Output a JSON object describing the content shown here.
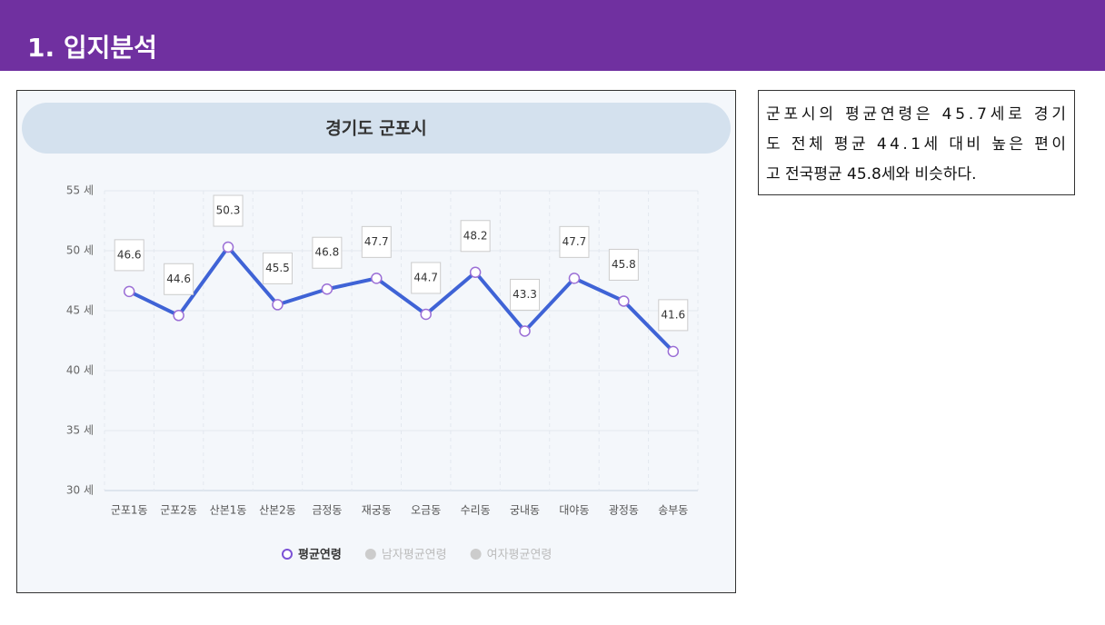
{
  "header": {
    "title": "1. 입지분석"
  },
  "chart_data": {
    "type": "line",
    "title": "경기도 군포시",
    "categories": [
      "군포1동",
      "군포2동",
      "산본1동",
      "산본2동",
      "금정동",
      "재궁동",
      "오금동",
      "수리동",
      "궁내동",
      "대야동",
      "광정동",
      "송부동"
    ],
    "series": [
      {
        "name": "평균연령",
        "color": "#3f63d6",
        "values": [
          46.6,
          44.6,
          50.3,
          45.5,
          46.8,
          47.7,
          44.7,
          48.2,
          43.3,
          47.7,
          45.8,
          41.6
        ]
      },
      {
        "name": "남자평균연령",
        "color": "#cccccc",
        "hidden": true
      },
      {
        "name": "여자평균연령",
        "color": "#cccccc",
        "hidden": true
      }
    ],
    "ylim": [
      30,
      55
    ],
    "yticks": [
      {
        "value": 30,
        "label": "30 세"
      },
      {
        "value": 35,
        "label": "35 세"
      },
      {
        "value": 40,
        "label": "40 세"
      },
      {
        "value": 45,
        "label": "45 세"
      },
      {
        "value": 50,
        "label": "50 세"
      },
      {
        "value": 55,
        "label": "55 세"
      }
    ],
    "grid": true
  },
  "note": {
    "lines": [
      "군포시의 평균연령은 45.7세로 경기",
      "도 전체 평균 44.1세 대비 높은 편이",
      "고 전국평균 45.8세와 비슷하다."
    ]
  }
}
